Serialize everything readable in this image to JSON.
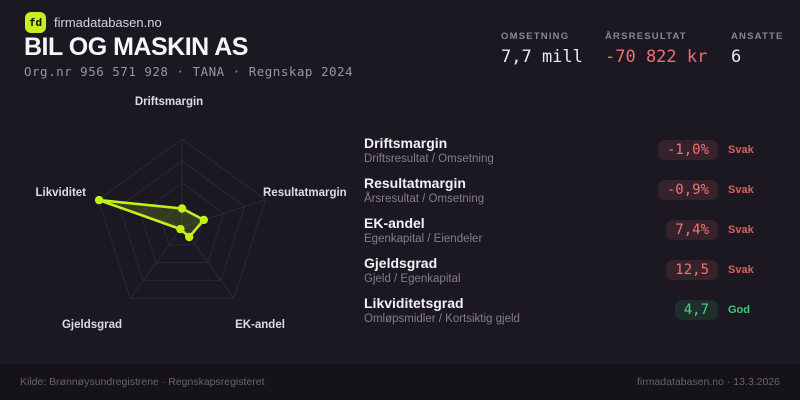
{
  "brand": {
    "logo_text": "fd",
    "name": "firmadatabasen.no"
  },
  "header": {
    "title": "BIL OG MASKIN AS",
    "subtitle": "Org.nr 956 571 928 · TANA · Regnskap 2024"
  },
  "stats": [
    {
      "label": "OMSETNING",
      "value": "7,7 mill",
      "tone": "normal"
    },
    {
      "label": "ÅRSRESULTAT",
      "value": "-70 822 kr",
      "tone": "negative"
    },
    {
      "label": "ANSATTE",
      "value": "6",
      "tone": "normal"
    }
  ],
  "chart_data": {
    "type": "radar",
    "title": "",
    "axes": [
      "Driftsmargin",
      "Resultatmargin",
      "EK-andel",
      "Gjeldsgrad",
      "Likviditet"
    ],
    "values_normalized": [
      0.21,
      0.26,
      0.14,
      0.03,
      0.99
    ],
    "range": [
      0,
      1
    ],
    "rings": 4,
    "grid": true,
    "stroke_color": "#c3f117",
    "fill_color": "rgba(195,241,23,0.16)",
    "grid_color": "#2b2834"
  },
  "metrics": [
    {
      "title": "Driftsmargin",
      "formula": "Driftsresultat / Omsetning",
      "value": "-1,0%",
      "status": "Svak",
      "tone": "bad"
    },
    {
      "title": "Resultatmargin",
      "formula": "Årsresultat / Omsetning",
      "value": "-0,9%",
      "status": "Svak",
      "tone": "bad"
    },
    {
      "title": "EK-andel",
      "formula": "Egenkapital / Eiendeler",
      "value": "7,4%",
      "status": "Svak",
      "tone": "bad"
    },
    {
      "title": "Gjeldsgrad",
      "formula": "Gjeld / Egenkapital",
      "value": "12,5",
      "status": "Svak",
      "tone": "bad"
    },
    {
      "title": "Likviditetsgrad",
      "formula": "Omløpsmidler / Kortsiktig gjeld",
      "value": "4,7",
      "status": "God",
      "tone": "good"
    }
  ],
  "footer": {
    "left": "Kilde: Brønnøysundregistrene · Regnskapsregisteret",
    "right": "firmadatabasen.no · 13.3.2026"
  }
}
